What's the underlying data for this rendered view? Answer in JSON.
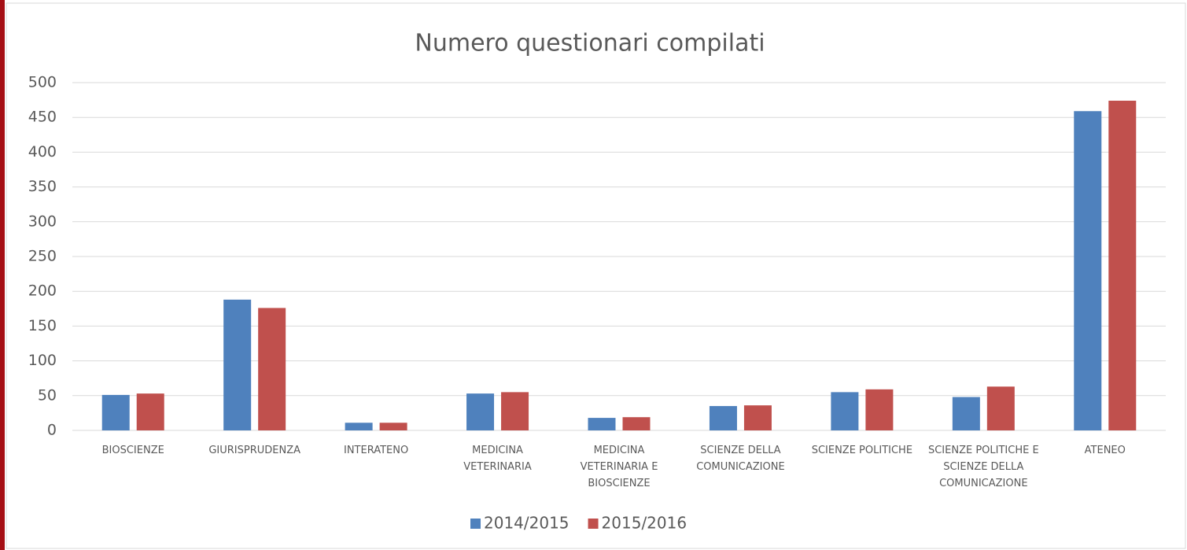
{
  "chart_data": {
    "type": "bar",
    "title": "Numero questionari compilati",
    "categories": [
      "BIOSCIENZE",
      "GIURISPRUDENZA",
      "INTERATENO",
      "MEDICINA VETERINARIA",
      "MEDICINA VETERINARIA E BIOSCIENZE",
      "SCIENZE DELLA COMUNICAZIONE",
      "SCIENZE POLITICHE",
      "SCIENZE POLITICHE E SCIENZE DELLA COMUNICAZIONE",
      "ATENEO"
    ],
    "series": [
      {
        "name": "2014/2015",
        "color": "#4f81bd",
        "values": [
          51,
          188,
          11,
          53,
          18,
          35,
          55,
          48,
          459
        ]
      },
      {
        "name": "2015/2016",
        "color": "#c0504d",
        "values": [
          53,
          176,
          11,
          55,
          19,
          36,
          59,
          63,
          474
        ]
      }
    ],
    "ylim": [
      0,
      500
    ],
    "yticks": [
      0,
      50,
      100,
      150,
      200,
      250,
      300,
      350,
      400,
      450,
      500
    ],
    "grid": true,
    "legend": "bottom"
  }
}
